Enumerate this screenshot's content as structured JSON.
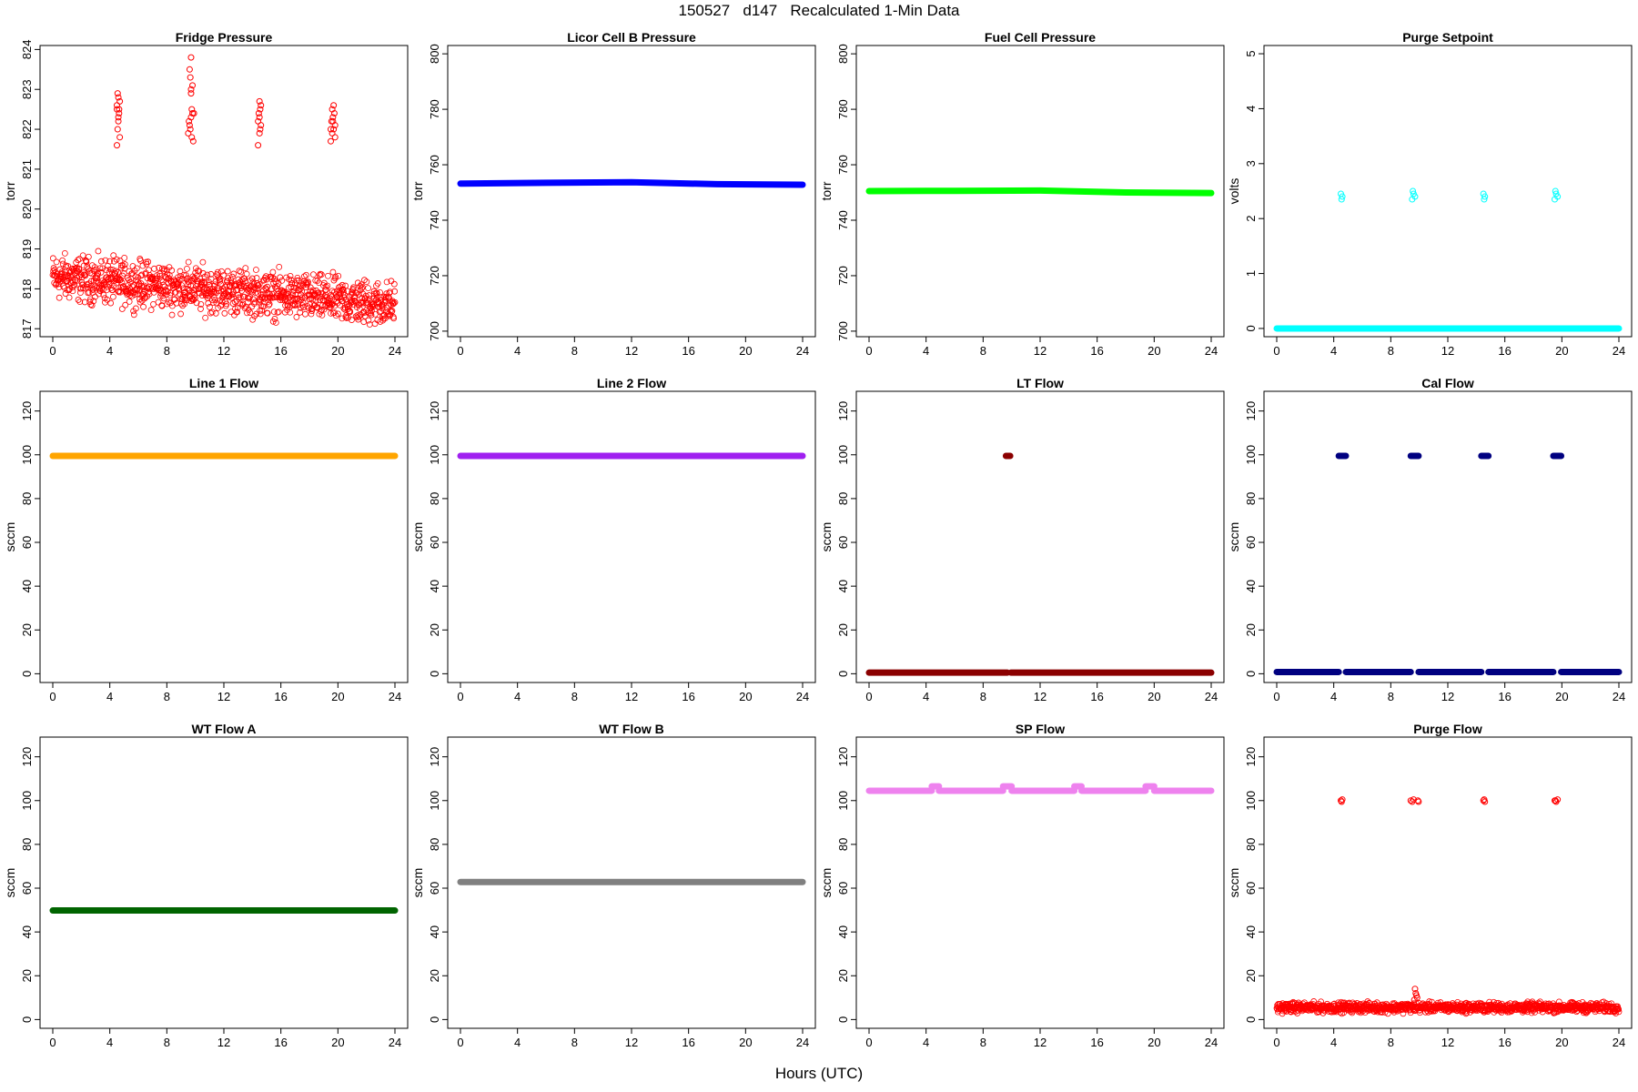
{
  "page": {
    "title": "150527   d147   Recalculated 1-Min Data",
    "xlabel": "Hours (UTC)"
  },
  "chart_data": [
    {
      "type": "scatter",
      "title": "Fridge Pressure",
      "ylabel": "torr",
      "color": "#ff0000",
      "marker": "open-circle",
      "xlim": [
        0,
        24
      ],
      "ylim": [
        816.8,
        824.1
      ],
      "xticks": [
        0,
        4,
        8,
        12,
        16,
        20,
        24
      ],
      "yticks": [
        817,
        818,
        819,
        820,
        821,
        822,
        823,
        824
      ],
      "series": [
        {
          "kind": "noisy",
          "x_from": 0,
          "x_to": 24,
          "y_start": 818.3,
          "y_end": 817.6,
          "spread": 0.55
        },
        {
          "kind": "points",
          "x": [
            4.5,
            4.55,
            4.6,
            4.65,
            4.5,
            4.7,
            4.6,
            4.55,
            4.65,
            4.6,
            4.7,
            4.5
          ],
          "y": [
            821.6,
            822.0,
            822.3,
            822.5,
            822.6,
            822.7,
            822.8,
            822.9,
            822.4,
            822.2,
            821.8,
            822.5
          ]
        },
        {
          "kind": "points",
          "x": [
            9.5,
            9.6,
            9.7,
            9.8,
            9.65,
            9.75,
            9.55,
            9.7,
            9.8,
            9.6,
            9.7,
            9.9,
            9.75,
            9.65,
            9.85,
            9.7
          ],
          "y": [
            821.9,
            822.1,
            822.3,
            822.4,
            822.0,
            822.5,
            822.2,
            823.0,
            823.1,
            823.5,
            823.8,
            822.4,
            821.8,
            823.3,
            821.7,
            822.9
          ]
        },
        {
          "kind": "points",
          "x": [
            14.4,
            14.5,
            14.6,
            14.5,
            14.45,
            14.55,
            14.6,
            14.5,
            14.4,
            14.55
          ],
          "y": [
            821.6,
            821.9,
            822.1,
            822.3,
            822.4,
            822.5,
            822.6,
            822.7,
            822.2,
            822.0
          ]
        },
        {
          "kind": "points",
          "x": [
            19.5,
            19.6,
            19.7,
            19.8,
            19.55,
            19.65,
            19.75,
            19.6,
            19.7,
            19.8,
            19.5,
            19.65
          ],
          "y": [
            821.7,
            821.9,
            822.0,
            822.1,
            822.2,
            822.3,
            822.4,
            822.5,
            822.6,
            821.8,
            822.0,
            822.2
          ]
        }
      ]
    },
    {
      "type": "line",
      "title": "Licor Cell B Pressure",
      "ylabel": "torr",
      "color": "#0000ff",
      "xlim": [
        0,
        24
      ],
      "ylim": [
        698,
        803
      ],
      "xticks": [
        0,
        4,
        8,
        12,
        16,
        20,
        24
      ],
      "yticks": [
        700,
        720,
        740,
        760,
        780,
        800
      ],
      "series": [
        {
          "kind": "thick",
          "x": [
            0,
            6,
            12,
            18,
            24
          ],
          "y": [
            753.2,
            753.5,
            753.7,
            753.0,
            752.8
          ]
        }
      ]
    },
    {
      "type": "line",
      "title": "Fuel Cell Pressure",
      "ylabel": "torr",
      "color": "#00ff00",
      "xlim": [
        0,
        24
      ],
      "ylim": [
        698,
        803
      ],
      "xticks": [
        0,
        4,
        8,
        12,
        16,
        20,
        24
      ],
      "yticks": [
        700,
        720,
        740,
        760,
        780,
        800
      ],
      "series": [
        {
          "kind": "thick",
          "x": [
            0,
            6,
            12,
            18,
            24
          ],
          "y": [
            750.5,
            750.6,
            750.7,
            750.0,
            749.8
          ]
        }
      ]
    },
    {
      "type": "scatter",
      "title": "Purge Setpoint",
      "ylabel": "volts",
      "color": "#00ffff",
      "marker": "open-circle",
      "xlim": [
        0,
        24
      ],
      "ylim": [
        -0.15,
        5.15
      ],
      "xticks": [
        0,
        4,
        8,
        12,
        16,
        20,
        24
      ],
      "yticks": [
        0,
        1,
        2,
        3,
        4,
        5
      ],
      "series": [
        {
          "kind": "thick",
          "x": [
            0,
            24
          ],
          "y": [
            0,
            0
          ]
        },
        {
          "kind": "points",
          "x": [
            4.5,
            4.6,
            4.55,
            9.5,
            9.6,
            9.7,
            9.55,
            14.5,
            14.6,
            14.55,
            19.5,
            19.6,
            19.7,
            19.55
          ],
          "y": [
            2.45,
            2.4,
            2.35,
            2.35,
            2.45,
            2.4,
            2.5,
            2.45,
            2.4,
            2.35,
            2.35,
            2.45,
            2.4,
            2.5
          ]
        }
      ]
    },
    {
      "type": "line",
      "title": "Line 1 Flow",
      "ylabel": "sccm",
      "color": "#ffa500",
      "xlim": [
        0,
        24
      ],
      "ylim": [
        -4,
        129
      ],
      "xticks": [
        0,
        4,
        8,
        12,
        16,
        20,
        24
      ],
      "yticks": [
        0,
        20,
        40,
        60,
        80,
        100,
        120
      ],
      "series": [
        {
          "kind": "thick",
          "x": [
            0,
            24
          ],
          "y": [
            99.5,
            99.5
          ]
        }
      ]
    },
    {
      "type": "line",
      "title": "Line 2 Flow",
      "ylabel": "sccm",
      "color": "#a020f0",
      "xlim": [
        0,
        24
      ],
      "ylim": [
        -4,
        129
      ],
      "xticks": [
        0,
        4,
        8,
        12,
        16,
        20,
        24
      ],
      "yticks": [
        0,
        20,
        40,
        60,
        80,
        100,
        120
      ],
      "series": [
        {
          "kind": "thick",
          "x": [
            0,
            24
          ],
          "y": [
            99.5,
            99.5
          ]
        }
      ]
    },
    {
      "type": "line",
      "title": "LT Flow",
      "ylabel": "sccm",
      "color": "#8b0000",
      "xlim": [
        0,
        24
      ],
      "ylim": [
        -4,
        129
      ],
      "xticks": [
        0,
        4,
        8,
        12,
        16,
        20,
        24
      ],
      "yticks": [
        0,
        20,
        40,
        60,
        80,
        100,
        120
      ],
      "series": [
        {
          "kind": "thick",
          "x": [
            0,
            9.7
          ],
          "y": [
            0.5,
            0.5
          ]
        },
        {
          "kind": "thick",
          "x": [
            9.95,
            24
          ],
          "y": [
            0.5,
            0.5
          ]
        },
        {
          "kind": "thick",
          "x": [
            9.6,
            9.9
          ],
          "y": [
            99.5,
            99.5
          ]
        }
      ]
    },
    {
      "type": "line",
      "title": "Cal Flow",
      "ylabel": "sccm",
      "color": "#000080",
      "xlim": [
        0,
        24
      ],
      "ylim": [
        -4,
        129
      ],
      "xticks": [
        0,
        4,
        8,
        12,
        16,
        20,
        24
      ],
      "yticks": [
        0,
        20,
        40,
        60,
        80,
        100,
        120
      ],
      "series": [
        {
          "kind": "thick",
          "x": [
            0,
            4.35
          ],
          "y": [
            0.8,
            0.8
          ]
        },
        {
          "kind": "thick",
          "x": [
            4.85,
            9.4
          ],
          "y": [
            0.8,
            0.8
          ]
        },
        {
          "kind": "thick",
          "x": [
            9.95,
            14.35
          ],
          "y": [
            0.8,
            0.8
          ]
        },
        {
          "kind": "thick",
          "x": [
            14.85,
            19.4
          ],
          "y": [
            0.8,
            0.8
          ]
        },
        {
          "kind": "thick",
          "x": [
            19.95,
            24
          ],
          "y": [
            0.8,
            0.8
          ]
        },
        {
          "kind": "thick",
          "x": [
            4.35,
            4.85
          ],
          "y": [
            99.5,
            99.5
          ]
        },
        {
          "kind": "thick",
          "x": [
            9.4,
            9.95
          ],
          "y": [
            99.5,
            99.5
          ]
        },
        {
          "kind": "thick",
          "x": [
            14.35,
            14.85
          ],
          "y": [
            99.5,
            99.5
          ]
        },
        {
          "kind": "thick",
          "x": [
            19.4,
            19.95
          ],
          "y": [
            99.5,
            99.5
          ]
        }
      ]
    },
    {
      "type": "line",
      "title": "WT Flow A",
      "ylabel": "sccm",
      "color": "#006400",
      "xlim": [
        0,
        24
      ],
      "ylim": [
        -4,
        129
      ],
      "xticks": [
        0,
        4,
        8,
        12,
        16,
        20,
        24
      ],
      "yticks": [
        0,
        20,
        40,
        60,
        80,
        100,
        120
      ],
      "series": [
        {
          "kind": "thick",
          "x": [
            0,
            24
          ],
          "y": [
            49.8,
            49.8
          ]
        }
      ]
    },
    {
      "type": "line",
      "title": "WT Flow B",
      "ylabel": "sccm",
      "color": "#808080",
      "xlim": [
        0,
        24
      ],
      "ylim": [
        -4,
        129
      ],
      "xticks": [
        0,
        4,
        8,
        12,
        16,
        20,
        24
      ],
      "yticks": [
        0,
        20,
        40,
        60,
        80,
        100,
        120
      ],
      "series": [
        {
          "kind": "thick",
          "x": [
            0,
            24
          ],
          "y": [
            62.8,
            62.8
          ]
        }
      ]
    },
    {
      "type": "line",
      "title": "SP Flow",
      "ylabel": "sccm",
      "color": "#ee82ee",
      "xlim": [
        0,
        24
      ],
      "ylim": [
        -4,
        129
      ],
      "xticks": [
        0,
        4,
        8,
        12,
        16,
        20,
        24
      ],
      "yticks": [
        0,
        20,
        40,
        60,
        80,
        100,
        120
      ],
      "series": [
        {
          "kind": "thick",
          "x": [
            0,
            4.4
          ],
          "y": [
            104.5,
            104.5
          ]
        },
        {
          "kind": "thick",
          "x": [
            4.4,
            4.9
          ],
          "y": [
            106.5,
            106.5
          ]
        },
        {
          "kind": "thick",
          "x": [
            4.9,
            9.4
          ],
          "y": [
            104.5,
            104.5
          ]
        },
        {
          "kind": "thick",
          "x": [
            9.4,
            10.0
          ],
          "y": [
            106.5,
            106.5
          ]
        },
        {
          "kind": "thick",
          "x": [
            10.0,
            14.4
          ],
          "y": [
            104.5,
            104.5
          ]
        },
        {
          "kind": "thick",
          "x": [
            14.4,
            14.9
          ],
          "y": [
            106.5,
            106.5
          ]
        },
        {
          "kind": "thick",
          "x": [
            14.9,
            19.4
          ],
          "y": [
            104.5,
            104.5
          ]
        },
        {
          "kind": "thick",
          "x": [
            19.4,
            20.0
          ],
          "y": [
            106.5,
            106.5
          ]
        },
        {
          "kind": "thick",
          "x": [
            20.0,
            24
          ],
          "y": [
            104.5,
            104.5
          ]
        }
      ]
    },
    {
      "type": "scatter",
      "title": "Purge Flow",
      "ylabel": "sccm",
      "color": "#ff0000",
      "marker": "open-circle",
      "xlim": [
        0,
        24
      ],
      "ylim": [
        -4,
        129
      ],
      "xticks": [
        0,
        4,
        8,
        12,
        16,
        20,
        24
      ],
      "yticks": [
        0,
        20,
        40,
        60,
        80,
        100,
        120
      ],
      "series": [
        {
          "kind": "noisy",
          "x_from": 0,
          "x_to": 24,
          "y_start": 5.5,
          "y_end": 5.5,
          "spread": 2.2
        },
        {
          "kind": "points",
          "x": [
            9.7,
            9.75,
            9.8,
            9.65,
            9.85
          ],
          "y": [
            14,
            12,
            11,
            9,
            10
          ]
        },
        {
          "kind": "points",
          "x": [
            4.5,
            4.6,
            4.55,
            9.4,
            9.5,
            9.6,
            9.9,
            9.95,
            14.5,
            14.6,
            14.55,
            19.5,
            19.6,
            19.7,
            19.55
          ],
          "y": [
            100,
            100.5,
            99.5,
            100,
            99.5,
            100.5,
            100,
            99.5,
            100,
            99.5,
            100.5,
            100,
            99.5,
            100.5,
            100
          ]
        }
      ]
    }
  ]
}
